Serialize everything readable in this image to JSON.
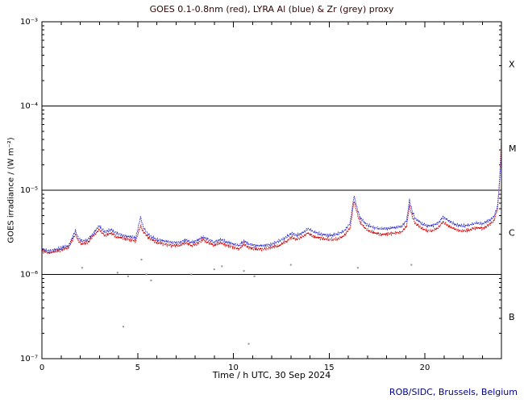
{
  "footer": {
    "credit": "ROB/SIDC, Brussels, Belgium"
  },
  "chart_data": {
    "type": "line",
    "title": "GOES 0.1-0.8nm (red), LYRA Al (blue) & Zr (grey) proxy",
    "xlabel": "Time / h UTC, 30 Sep 2024",
    "ylabel": "GOES irradiance / (W m⁻²)",
    "y_scale": "log",
    "xlim": [
      0,
      24
    ],
    "ylim": [
      1e-07,
      0.001
    ],
    "x_major_ticks": [
      0,
      5,
      10,
      15,
      20
    ],
    "x_minor_step": 1,
    "grid": false,
    "legend_position": "in-title",
    "y_ticks": [
      {
        "label": "10⁻³",
        "value": 0.001
      },
      {
        "label": "10⁻⁴",
        "value": 0.0001
      },
      {
        "label": "10⁻⁵",
        "value": 1e-05
      },
      {
        "label": "10⁻⁶",
        "value": 1e-06
      },
      {
        "label": "10⁻⁷",
        "value": 1e-07
      }
    ],
    "class_lines": [
      0.0001,
      1e-05,
      1e-06
    ],
    "class_labels": [
      {
        "label": "X",
        "log_level": -3.5
      },
      {
        "label": "M",
        "log_level": -4.5
      },
      {
        "label": "C",
        "log_level": -5.5
      },
      {
        "label": "B",
        "log_level": -6.5
      }
    ],
    "colors": {
      "goes": "#cc0000",
      "lyra_al": "#3333cc",
      "lyra_zr": "#9090a0",
      "axis": "#000000",
      "title": "#300505",
      "credit": "#00008b"
    },
    "series": [
      {
        "name": "GOES 0.1-0.8nm",
        "color_key": "goes",
        "style": "line",
        "points": [
          [
            0,
            1.9e-06
          ],
          [
            0.4,
            1.8e-06
          ],
          [
            0.8,
            1.9e-06
          ],
          [
            1.1,
            2e-06
          ],
          [
            1.4,
            2.1e-06
          ],
          [
            1.6,
            2.6e-06
          ],
          [
            1.75,
            3e-06
          ],
          [
            1.9,
            2.5e-06
          ],
          [
            2.1,
            2.3e-06
          ],
          [
            2.4,
            2.4e-06
          ],
          [
            2.7,
            2.9e-06
          ],
          [
            3.0,
            3.4e-06
          ],
          [
            3.15,
            3.1e-06
          ],
          [
            3.3,
            2.9e-06
          ],
          [
            3.6,
            3.1e-06
          ],
          [
            3.9,
            2.8e-06
          ],
          [
            4.2,
            2.7e-06
          ],
          [
            4.6,
            2.6e-06
          ],
          [
            4.9,
            2.5e-06
          ],
          [
            5.15,
            3.8e-06
          ],
          [
            5.3,
            3.2e-06
          ],
          [
            5.6,
            2.7e-06
          ],
          [
            6.0,
            2.4e-06
          ],
          [
            6.4,
            2.3e-06
          ],
          [
            6.8,
            2.2e-06
          ],
          [
            7.2,
            2.2e-06
          ],
          [
            7.5,
            2.4e-06
          ],
          [
            7.8,
            2.2e-06
          ],
          [
            8.1,
            2.3e-06
          ],
          [
            8.4,
            2.6e-06
          ],
          [
            8.7,
            2.4e-06
          ],
          [
            9.0,
            2.2e-06
          ],
          [
            9.3,
            2.4e-06
          ],
          [
            9.7,
            2.2e-06
          ],
          [
            10.0,
            2.1e-06
          ],
          [
            10.3,
            2e-06
          ],
          [
            10.55,
            2.3e-06
          ],
          [
            10.8,
            2.1e-06
          ],
          [
            11.2,
            2e-06
          ],
          [
            11.6,
            2e-06
          ],
          [
            12.0,
            2.1e-06
          ],
          [
            12.4,
            2.2e-06
          ],
          [
            12.8,
            2.5e-06
          ],
          [
            13.05,
            2.8e-06
          ],
          [
            13.3,
            2.6e-06
          ],
          [
            13.6,
            2.8e-06
          ],
          [
            13.9,
            3.1e-06
          ],
          [
            14.2,
            2.8e-06
          ],
          [
            14.6,
            2.7e-06
          ],
          [
            15.0,
            2.6e-06
          ],
          [
            15.4,
            2.6e-06
          ],
          [
            15.8,
            2.9e-06
          ],
          [
            16.1,
            3.6e-06
          ],
          [
            16.3,
            7.5e-06
          ],
          [
            16.45,
            5.5e-06
          ],
          [
            16.6,
            4.2e-06
          ],
          [
            16.9,
            3.5e-06
          ],
          [
            17.2,
            3.2e-06
          ],
          [
            17.6,
            3e-06
          ],
          [
            18.0,
            3e-06
          ],
          [
            18.4,
            3.1e-06
          ],
          [
            18.8,
            3.2e-06
          ],
          [
            19.05,
            3.8e-06
          ],
          [
            19.2,
            6.5e-06
          ],
          [
            19.35,
            4.8e-06
          ],
          [
            19.5,
            4e-06
          ],
          [
            19.8,
            3.6e-06
          ],
          [
            20.1,
            3.3e-06
          ],
          [
            20.4,
            3.3e-06
          ],
          [
            20.7,
            3.6e-06
          ],
          [
            20.95,
            4.2e-06
          ],
          [
            21.2,
            3.8e-06
          ],
          [
            21.5,
            3.5e-06
          ],
          [
            21.8,
            3.3e-06
          ],
          [
            22.1,
            3.3e-06
          ],
          [
            22.4,
            3.4e-06
          ],
          [
            22.7,
            3.6e-06
          ],
          [
            23.0,
            3.5e-06
          ],
          [
            23.3,
            3.8e-06
          ],
          [
            23.6,
            4.3e-06
          ],
          [
            23.8,
            6e-06
          ],
          [
            23.92,
            1.5e-05
          ],
          [
            24,
            4.5e-05
          ]
        ]
      },
      {
        "name": "LYRA Al proxy",
        "color_key": "lyra_al",
        "style": "line",
        "points": [
          [
            0,
            2e-06
          ],
          [
            0.4,
            1.9e-06
          ],
          [
            0.8,
            2e-06
          ],
          [
            1.1,
            2.1e-06
          ],
          [
            1.4,
            2.2e-06
          ],
          [
            1.6,
            2.8e-06
          ],
          [
            1.75,
            3.3e-06
          ],
          [
            1.9,
            2.7e-06
          ],
          [
            2.1,
            2.5e-06
          ],
          [
            2.4,
            2.6e-06
          ],
          [
            2.7,
            3.1e-06
          ],
          [
            3.0,
            3.8e-06
          ],
          [
            3.15,
            3.4e-06
          ],
          [
            3.3,
            3.2e-06
          ],
          [
            3.6,
            3.4e-06
          ],
          [
            3.9,
            3.1e-06
          ],
          [
            4.2,
            2.9e-06
          ],
          [
            4.6,
            2.8e-06
          ],
          [
            4.9,
            2.7e-06
          ],
          [
            5.15,
            4.8e-06
          ],
          [
            5.3,
            3.6e-06
          ],
          [
            5.6,
            2.9e-06
          ],
          [
            6.0,
            2.6e-06
          ],
          [
            6.4,
            2.5e-06
          ],
          [
            6.8,
            2.4e-06
          ],
          [
            7.2,
            2.4e-06
          ],
          [
            7.5,
            2.6e-06
          ],
          [
            7.8,
            2.4e-06
          ],
          [
            8.1,
            2.5e-06
          ],
          [
            8.4,
            2.8e-06
          ],
          [
            8.7,
            2.6e-06
          ],
          [
            9.0,
            2.4e-06
          ],
          [
            9.3,
            2.6e-06
          ],
          [
            9.7,
            2.4e-06
          ],
          [
            10.0,
            2.3e-06
          ],
          [
            10.3,
            2.2e-06
          ],
          [
            10.55,
            2.5e-06
          ],
          [
            10.8,
            2.3e-06
          ],
          [
            11.2,
            2.2e-06
          ],
          [
            11.6,
            2.2e-06
          ],
          [
            12.0,
            2.3e-06
          ],
          [
            12.4,
            2.5e-06
          ],
          [
            12.8,
            2.8e-06
          ],
          [
            13.05,
            3.1e-06
          ],
          [
            13.3,
            2.9e-06
          ],
          [
            13.6,
            3.1e-06
          ],
          [
            13.9,
            3.5e-06
          ],
          [
            14.2,
            3.2e-06
          ],
          [
            14.6,
            3e-06
          ],
          [
            15.0,
            2.9e-06
          ],
          [
            15.4,
            3e-06
          ],
          [
            15.8,
            3.3e-06
          ],
          [
            16.1,
            4.1e-06
          ],
          [
            16.3,
            8.6e-06
          ],
          [
            16.45,
            6.3e-06
          ],
          [
            16.6,
            4.8e-06
          ],
          [
            16.9,
            4e-06
          ],
          [
            17.2,
            3.7e-06
          ],
          [
            17.6,
            3.5e-06
          ],
          [
            18.0,
            3.5e-06
          ],
          [
            18.4,
            3.6e-06
          ],
          [
            18.8,
            3.7e-06
          ],
          [
            19.05,
            4.4e-06
          ],
          [
            19.2,
            7.6e-06
          ],
          [
            19.35,
            5.5e-06
          ],
          [
            19.5,
            4.6e-06
          ],
          [
            19.8,
            4.1e-06
          ],
          [
            20.1,
            3.8e-06
          ],
          [
            20.4,
            3.8e-06
          ],
          [
            20.7,
            4.1e-06
          ],
          [
            20.95,
            4.8e-06
          ],
          [
            21.2,
            4.4e-06
          ],
          [
            21.5,
            4e-06
          ],
          [
            21.8,
            3.8e-06
          ],
          [
            22.1,
            3.8e-06
          ],
          [
            22.4,
            3.9e-06
          ],
          [
            22.7,
            4.1e-06
          ],
          [
            23.0,
            4e-06
          ],
          [
            23.3,
            4.3e-06
          ],
          [
            23.6,
            4.8e-06
          ],
          [
            23.8,
            6.5e-06
          ],
          [
            23.92,
            1.4e-05
          ],
          [
            24,
            3.5e-05
          ]
        ]
      },
      {
        "name": "LYRA Zr proxy",
        "color_key": "lyra_zr",
        "style": "scatter",
        "points": [
          [
            2.1,
            1.2e-06
          ],
          [
            3.95,
            1.05e-06
          ],
          [
            4.25,
            2.4e-07
          ],
          [
            4.5,
            9.5e-07
          ],
          [
            5.2,
            1.5e-06
          ],
          [
            5.45,
            1e-06
          ],
          [
            5.7,
            8.5e-07
          ],
          [
            7.8,
            1e-06
          ],
          [
            9.0,
            1.15e-06
          ],
          [
            9.4,
            1.25e-06
          ],
          [
            10.55,
            1.1e-06
          ],
          [
            10.8,
            1.5e-07
          ],
          [
            11.1,
            9.5e-07
          ],
          [
            13.0,
            1.3e-06
          ],
          [
            16.5,
            1.2e-06
          ],
          [
            19.3,
            1.3e-06
          ]
        ]
      }
    ]
  }
}
